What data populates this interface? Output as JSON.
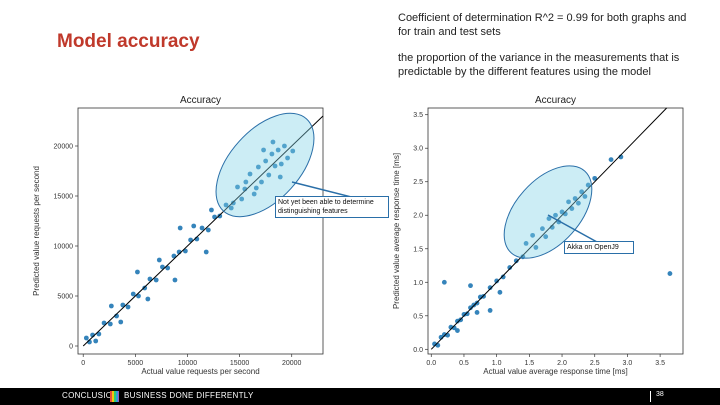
{
  "slide": {
    "title": "Model accuracy",
    "note1": "Coefficient of determination R^2 = 0.99 for both graphs and for train and test sets",
    "note2": "the proportion of the variance in the measurements that is predictable by the different features using the model",
    "callout_left": "Not yet been able to determine distinguishing features",
    "callout_right": "Akka on OpenJ9"
  },
  "footer": {
    "brand": "CONCLUSION",
    "tagline": "BUSINESS DONE DIFFERENTLY",
    "page": "38"
  },
  "colors": {
    "title": "#c0392b",
    "point": "#1f77b4",
    "ellipse": "#7fd3e6"
  },
  "chart_data": [
    {
      "type": "scatter",
      "title": "Accuracy",
      "xlabel": "Actual value requests per second",
      "ylabel": "Predicted value requests per second",
      "xlim": [
        -500,
        23000
      ],
      "ylim": [
        -800,
        23800
      ],
      "xticks": [
        0,
        5000,
        10000,
        15000,
        20000
      ],
      "yticks": [
        0,
        5000,
        10000,
        15000,
        20000
      ],
      "diagonal": [
        [
          0,
          0
        ],
        [
          23000,
          23000
        ]
      ],
      "points": [
        [
          300,
          800
        ],
        [
          600,
          400
        ],
        [
          900,
          1100
        ],
        [
          1500,
          1200
        ],
        [
          2000,
          2300
        ],
        [
          2600,
          2200
        ],
        [
          3200,
          3000
        ],
        [
          3800,
          4100
        ],
        [
          4300,
          3900
        ],
        [
          4800,
          5200
        ],
        [
          5300,
          5000
        ],
        [
          5900,
          5800
        ],
        [
          6400,
          6700
        ],
        [
          7000,
          6600
        ],
        [
          7600,
          7900
        ],
        [
          8100,
          7800
        ],
        [
          8700,
          9000
        ],
        [
          9200,
          9400
        ],
        [
          9800,
          9500
        ],
        [
          10300,
          10600
        ],
        [
          10900,
          10700
        ],
        [
          11400,
          11800
        ],
        [
          12000,
          11600
        ],
        [
          12600,
          12900
        ],
        [
          13100,
          13000
        ],
        [
          13700,
          14100
        ],
        [
          14200,
          13800
        ],
        [
          15600,
          16400
        ],
        [
          16000,
          17200
        ],
        [
          16400,
          15200
        ],
        [
          16800,
          17900
        ],
        [
          17100,
          16400
        ],
        [
          17500,
          18500
        ],
        [
          17800,
          17100
        ],
        [
          18100,
          19200
        ],
        [
          18400,
          18000
        ],
        [
          18700,
          19600
        ],
        [
          19000,
          18200
        ],
        [
          19300,
          20000
        ],
        [
          19600,
          18800
        ],
        [
          15200,
          14700
        ],
        [
          17300,
          19600
        ],
        [
          18900,
          16900
        ],
        [
          14400,
          14300
        ],
        [
          15500,
          15700
        ],
        [
          6200,
          4700
        ],
        [
          8800,
          6600
        ],
        [
          5200,
          7400
        ],
        [
          2700,
          4000
        ],
        [
          9300,
          11800
        ],
        [
          11800,
          9400
        ],
        [
          1200,
          500
        ],
        [
          14800,
          15900
        ],
        [
          20100,
          19500
        ],
        [
          18200,
          20400
        ],
        [
          16600,
          15800
        ],
        [
          12300,
          13600
        ],
        [
          7300,
          8600
        ],
        [
          3600,
          2400
        ],
        [
          10600,
          12000
        ]
      ]
    },
    {
      "type": "scatter",
      "title": "Accuracy",
      "xlabel": "Actual value average response time [ms]",
      "ylabel": "Predicted value average response time [ms]",
      "xlim": [
        -0.05,
        3.85
      ],
      "ylim": [
        -0.07,
        3.6
      ],
      "xticks": [
        "0.0",
        "0.5",
        "1.0",
        "1.5",
        "2.0",
        "2.5",
        "3.0",
        "3.5"
      ],
      "yticks": [
        "0.0",
        "0.5",
        "1.0",
        "1.5",
        "2.0",
        "2.5",
        "3.0",
        "3.5"
      ],
      "diagonal": [
        [
          0,
          0
        ],
        [
          3.6,
          3.6
        ]
      ],
      "points": [
        [
          0.05,
          0.08
        ],
        [
          0.1,
          0.06
        ],
        [
          0.15,
          0.18
        ],
        [
          0.2,
          0.22
        ],
        [
          0.25,
          0.21
        ],
        [
          0.3,
          0.33
        ],
        [
          0.35,
          0.32
        ],
        [
          0.4,
          0.42
        ],
        [
          0.45,
          0.44
        ],
        [
          0.5,
          0.52
        ],
        [
          0.55,
          0.53
        ],
        [
          0.6,
          0.62
        ],
        [
          0.65,
          0.66
        ],
        [
          0.7,
          0.69
        ],
        [
          0.75,
          0.78
        ],
        [
          0.8,
          0.79
        ],
        [
          0.9,
          0.92
        ],
        [
          1.0,
          1.02
        ],
        [
          1.1,
          1.08
        ],
        [
          1.2,
          1.22
        ],
        [
          1.3,
          1.32
        ],
        [
          1.4,
          1.38
        ],
        [
          1.55,
          1.7
        ],
        [
          1.6,
          1.52
        ],
        [
          1.7,
          1.8
        ],
        [
          1.75,
          1.68
        ],
        [
          1.8,
          1.95
        ],
        [
          1.85,
          1.82
        ],
        [
          1.9,
          2.0
        ],
        [
          1.95,
          1.9
        ],
        [
          2.0,
          2.05
        ],
        [
          2.05,
          2.02
        ],
        [
          2.1,
          2.2
        ],
        [
          2.15,
          2.1
        ],
        [
          2.2,
          2.25
        ],
        [
          2.25,
          2.18
        ],
        [
          2.3,
          2.35
        ],
        [
          2.4,
          2.45
        ],
        [
          2.5,
          2.55
        ],
        [
          2.75,
          2.83
        ],
        [
          2.9,
          2.87
        ],
        [
          0.2,
          1.0
        ],
        [
          0.6,
          0.95
        ],
        [
          0.9,
          0.58
        ],
        [
          1.05,
          0.85
        ],
        [
          3.65,
          1.13
        ],
        [
          0.4,
          0.28
        ],
        [
          0.7,
          0.55
        ],
        [
          1.45,
          1.58
        ],
        [
          2.35,
          2.28
        ]
      ]
    }
  ]
}
